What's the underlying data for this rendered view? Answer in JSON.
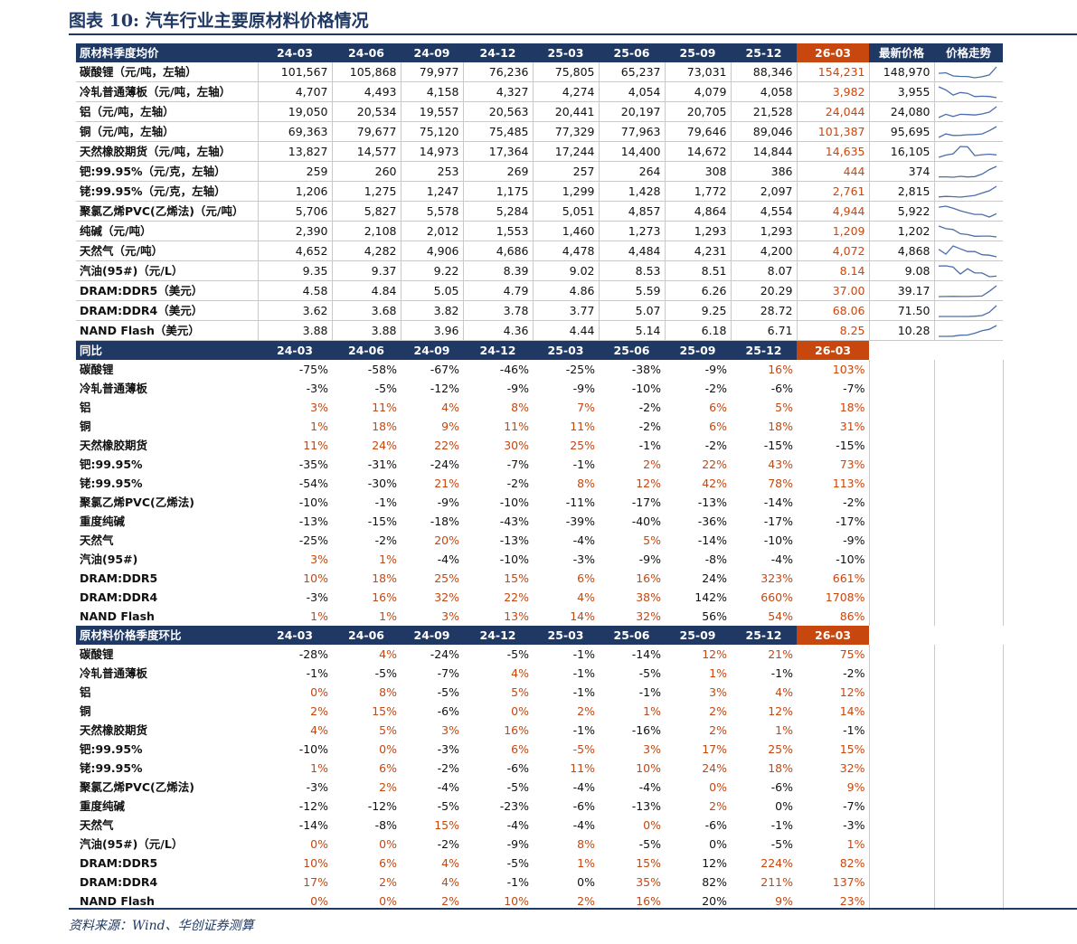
{
  "title": "图表 10:  汽车行业主要原材料价格情况",
  "source": "资料来源：Wind、华创证券测算",
  "colors": {
    "navy": "#1f3864",
    "accent": "#c8470f",
    "sparkline": "#4a6ea9"
  },
  "periods": [
    "24-03",
    "24-06",
    "24-09",
    "24-12",
    "25-03",
    "25-06",
    "25-09",
    "25-12",
    "26-03"
  ],
  "price_section": {
    "header": "原材料季度均价",
    "latest_label": "最新价格",
    "trend_label": "价格走势",
    "rows": [
      {
        "name": "碳酸锂（元/吨，左轴）",
        "values": [
          "101,567",
          "105,868",
          "79,977",
          "76,236",
          "75,805",
          "65,237",
          "73,031",
          "88,346",
          "154,231"
        ],
        "latest": "148,970",
        "spark": [
          101567,
          105868,
          79977,
          76236,
          75805,
          65237,
          73031,
          88346,
          154231
        ]
      },
      {
        "name": "冷轧普通薄板（元/吨，左轴）",
        "values": [
          "4,707",
          "4,493",
          "4,158",
          "4,327",
          "4,274",
          "4,054",
          "4,079",
          "4,058",
          "3,982"
        ],
        "latest": "3,955",
        "spark": [
          4707,
          4493,
          4158,
          4327,
          4274,
          4054,
          4079,
          4058,
          3982
        ]
      },
      {
        "name": "铝（元/吨，左轴）",
        "values": [
          "19,050",
          "20,534",
          "19,557",
          "20,563",
          "20,441",
          "20,197",
          "20,705",
          "21,528",
          "24,044"
        ],
        "latest": "24,080",
        "spark": [
          19050,
          20534,
          19557,
          20563,
          20441,
          20197,
          20705,
          21528,
          24044
        ]
      },
      {
        "name": "铜（元/吨，左轴）",
        "values": [
          "69,363",
          "79,677",
          "75,120",
          "75,485",
          "77,329",
          "77,963",
          "79,646",
          "89,046",
          "101,387"
        ],
        "latest": "95,695",
        "spark": [
          69363,
          79677,
          75120,
          75485,
          77329,
          77963,
          79646,
          89046,
          101387
        ]
      },
      {
        "name": "天然橡胶期货（元/吨，左轴）",
        "values": [
          "13,827",
          "14,577",
          "14,973",
          "17,364",
          "17,244",
          "14,400",
          "14,672",
          "14,844",
          "14,635"
        ],
        "latest": "16,105",
        "spark": [
          13827,
          14577,
          14973,
          17364,
          17244,
          14400,
          14672,
          14844,
          14635
        ]
      },
      {
        "name": "钯:99.95%（元/克，左轴）",
        "values": [
          "259",
          "260",
          "253",
          "269",
          "257",
          "264",
          "308",
          "386",
          "444"
        ],
        "latest": "374",
        "spark": [
          259,
          260,
          253,
          269,
          257,
          264,
          308,
          386,
          444
        ]
      },
      {
        "name": "铑:99.95%（元/克，左轴）",
        "values": [
          "1,206",
          "1,275",
          "1,247",
          "1,175",
          "1,299",
          "1,428",
          "1,772",
          "2,097",
          "2,761"
        ],
        "latest": "2,815",
        "spark": [
          1206,
          1275,
          1247,
          1175,
          1299,
          1428,
          1772,
          2097,
          2761
        ]
      },
      {
        "name": "聚氯乙烯PVC(乙烯法)（元/吨）",
        "values": [
          "5,706",
          "5,827",
          "5,578",
          "5,284",
          "5,051",
          "4,857",
          "4,864",
          "4,554",
          "4,944"
        ],
        "latest": "5,922",
        "spark": [
          5706,
          5827,
          5578,
          5284,
          5051,
          4857,
          4864,
          4554,
          4944
        ]
      },
      {
        "name": "纯碱（元/吨）",
        "values": [
          "2,390",
          "2,108",
          "2,012",
          "1,553",
          "1,460",
          "1,273",
          "1,293",
          "1,293",
          "1,209"
        ],
        "latest": "1,202",
        "spark": [
          2390,
          2108,
          2012,
          1553,
          1460,
          1273,
          1293,
          1293,
          1209
        ]
      },
      {
        "name": "天然气（元/吨）",
        "values": [
          "4,652",
          "4,282",
          "4,906",
          "4,686",
          "4,478",
          "4,484",
          "4,231",
          "4,200",
          "4,072"
        ],
        "latest": "4,868",
        "spark": [
          4652,
          4282,
          4906,
          4686,
          4478,
          4484,
          4231,
          4200,
          4072
        ]
      },
      {
        "name": "汽油(95#)（元/L）",
        "values": [
          "9.35",
          "9.37",
          "9.22",
          "8.39",
          "9.02",
          "8.53",
          "8.51",
          "8.07",
          "8.14"
        ],
        "latest": "9.08",
        "spark": [
          9.35,
          9.37,
          9.22,
          8.39,
          9.02,
          8.53,
          8.51,
          8.07,
          8.14
        ]
      },
      {
        "name": "DRAM:DDR5（美元）",
        "values": [
          "4.58",
          "4.84",
          "5.05",
          "4.79",
          "4.86",
          "5.59",
          "6.26",
          "20.29",
          "37.00"
        ],
        "latest": "39.17",
        "spark": [
          4.58,
          4.84,
          5.05,
          4.79,
          4.86,
          5.59,
          6.26,
          20.29,
          37.0
        ]
      },
      {
        "name": "DRAM:DDR4（美元）",
        "values": [
          "3.62",
          "3.68",
          "3.82",
          "3.78",
          "3.77",
          "5.07",
          "9.25",
          "28.72",
          "68.06"
        ],
        "latest": "71.50",
        "spark": [
          3.62,
          3.68,
          3.82,
          3.78,
          3.77,
          5.07,
          9.25,
          28.72,
          68.06
        ]
      },
      {
        "name": "NAND Flash（美元）",
        "values": [
          "3.88",
          "3.88",
          "3.96",
          "4.36",
          "4.44",
          "5.14",
          "6.18",
          "6.71",
          "8.25"
        ],
        "latest": "10.28",
        "spark": [
          3.88,
          3.88,
          3.96,
          4.36,
          4.44,
          5.14,
          6.18,
          6.71,
          8.25
        ]
      }
    ]
  },
  "yoy_section": {
    "header": "同比",
    "rows": [
      {
        "name": "碳酸锂",
        "values": [
          "-75%",
          "-58%",
          "-67%",
          "-46%",
          "-25%",
          "-38%",
          "-9%",
          "16%",
          "103%"
        ]
      },
      {
        "name": "冷轧普通薄板",
        "values": [
          "-3%",
          "-5%",
          "-12%",
          "-9%",
          "-9%",
          "-10%",
          "-2%",
          "-6%",
          "-7%"
        ]
      },
      {
        "name": "铝",
        "values": [
          "3%",
          "11%",
          "4%",
          "8%",
          "7%",
          "-2%",
          "6%",
          "5%",
          "18%"
        ]
      },
      {
        "name": "铜",
        "values": [
          "1%",
          "18%",
          "9%",
          "11%",
          "11%",
          "-2%",
          "6%",
          "18%",
          "31%"
        ]
      },
      {
        "name": "天然橡胶期货",
        "values": [
          "11%",
          "24%",
          "22%",
          "30%",
          "25%",
          "-1%",
          "-2%",
          "-15%",
          "-15%"
        ]
      },
      {
        "name": "钯:99.95%",
        "values": [
          "-35%",
          "-31%",
          "-24%",
          "-7%",
          "-1%",
          "2%",
          "22%",
          "43%",
          "73%"
        ]
      },
      {
        "name": "铑:99.95%",
        "values": [
          "-54%",
          "-30%",
          "21%",
          "-2%",
          "8%",
          "12%",
          "42%",
          "78%",
          "113%"
        ]
      },
      {
        "name": "聚氯乙烯PVC(乙烯法)",
        "values": [
          "-10%",
          "-1%",
          "-9%",
          "-10%",
          "-11%",
          "-17%",
          "-13%",
          "-14%",
          "-2%"
        ]
      },
      {
        "name": "重度纯碱",
        "values": [
          "-13%",
          "-15%",
          "-18%",
          "-43%",
          "-39%",
          "-40%",
          "-36%",
          "-17%",
          "-17%"
        ]
      },
      {
        "name": "天然气",
        "values": [
          "-25%",
          "-2%",
          "20%",
          "-13%",
          "-4%",
          "5%",
          "-14%",
          "-10%",
          "-9%"
        ]
      },
      {
        "name": "汽油(95#)",
        "values": [
          "3%",
          "1%",
          "-4%",
          "-10%",
          "-3%",
          "-9%",
          "-8%",
          "-4%",
          "-10%"
        ]
      },
      {
        "name": "DRAM:DDR5",
        "values": [
          "10%",
          "18%",
          "25%",
          "15%",
          "6%",
          "16%",
          "24%",
          "323%",
          "661%"
        ]
      },
      {
        "name": "DRAM:DDR4",
        "values": [
          "-3%",
          "16%",
          "32%",
          "22%",
          "4%",
          "38%",
          "142%",
          "660%",
          "1708%"
        ]
      },
      {
        "name": "NAND Flash",
        "values": [
          "1%",
          "1%",
          "3%",
          "13%",
          "14%",
          "32%",
          "56%",
          "54%",
          "86%"
        ]
      }
    ]
  },
  "qoq_section": {
    "header": "原材料价格季度环比",
    "rows": [
      {
        "name": "碳酸锂",
        "values": [
          "-28%",
          "4%",
          "-24%",
          "-5%",
          "-1%",
          "-14%",
          "12%",
          "21%",
          "75%"
        ]
      },
      {
        "name": "冷轧普通薄板",
        "values": [
          "-1%",
          "-5%",
          "-7%",
          "4%",
          "-1%",
          "-5%",
          "1%",
          "-1%",
          "-2%"
        ]
      },
      {
        "name": "铝",
        "values": [
          "0%",
          "8%",
          "-5%",
          "5%",
          "-1%",
          "-1%",
          "3%",
          "4%",
          "12%"
        ]
      },
      {
        "name": "铜",
        "values": [
          "2%",
          "15%",
          "-6%",
          "0%",
          "2%",
          "1%",
          "2%",
          "12%",
          "14%"
        ]
      },
      {
        "name": "天然橡胶期货",
        "values": [
          "4%",
          "5%",
          "3%",
          "16%",
          "-1%",
          "-16%",
          "2%",
          "1%",
          "-1%"
        ]
      },
      {
        "name": "钯:99.95%",
        "values": [
          "-10%",
          "0%",
          "-3%",
          "6%",
          "-5%",
          "3%",
          "17%",
          "25%",
          "15%"
        ]
      },
      {
        "name": "铑:99.95%",
        "values": [
          "1%",
          "6%",
          "-2%",
          "-6%",
          "11%",
          "10%",
          "24%",
          "18%",
          "32%"
        ]
      },
      {
        "name": "聚氯乙烯PVC(乙烯法)",
        "values": [
          "-3%",
          "2%",
          "-4%",
          "-5%",
          "-4%",
          "-4%",
          "0%",
          "-6%",
          "9%"
        ]
      },
      {
        "name": "重度纯碱",
        "values": [
          "-12%",
          "-12%",
          "-5%",
          "-23%",
          "-6%",
          "-13%",
          "2%",
          "0%",
          "-7%"
        ]
      },
      {
        "name": "天然气",
        "values": [
          "-14%",
          "-8%",
          "15%",
          "-4%",
          "-4%",
          "0%",
          "-6%",
          "-1%",
          "-3%"
        ]
      },
      {
        "name": "汽油(95#)（元/L）",
        "values": [
          "0%",
          "0%",
          "-2%",
          "-9%",
          "8%",
          "-5%",
          "0%",
          "-5%",
          "1%"
        ]
      },
      {
        "name": "DRAM:DDR5",
        "values": [
          "10%",
          "6%",
          "4%",
          "-5%",
          "1%",
          "15%",
          "12%",
          "224%",
          "82%"
        ]
      },
      {
        "name": "DRAM:DDR4",
        "values": [
          "17%",
          "2%",
          "4%",
          "-1%",
          "0%",
          "35%",
          "82%",
          "211%",
          "137%"
        ]
      },
      {
        "name": "NAND Flash",
        "values": [
          "0%",
          "0%",
          "2%",
          "10%",
          "2%",
          "16%",
          "20%",
          "9%",
          "23%"
        ]
      }
    ]
  },
  "red_map": {
    "price": [
      [
        8
      ],
      [
        8
      ],
      [
        8
      ],
      [
        8
      ],
      [
        8
      ],
      [
        8
      ],
      [
        8
      ],
      [
        8
      ],
      [
        8
      ],
      [
        8
      ],
      [
        8
      ],
      [
        8
      ],
      [
        8
      ],
      [
        8
      ]
    ],
    "yoy": [
      [
        7,
        8
      ],
      [],
      [
        0,
        1,
        2,
        3,
        4,
        6,
        7,
        8
      ],
      [
        0,
        1,
        2,
        3,
        4,
        6,
        7,
        8
      ],
      [
        0,
        1,
        2,
        3,
        4
      ],
      [
        5,
        6,
        7,
        8
      ],
      [
        2,
        4,
        5,
        6,
        7,
        8
      ],
      [],
      [],
      [
        2,
        5
      ],
      [
        0,
        1
      ],
      [
        0,
        1,
        2,
        3,
        4,
        5,
        7,
        8
      ],
      [
        1,
        2,
        3,
        4,
        5,
        7,
        8
      ],
      [
        0,
        1,
        2,
        3,
        4,
        5,
        7,
        8
      ]
    ],
    "qoq": [
      [
        1,
        6,
        7,
        8
      ],
      [
        3,
        6
      ],
      [
        0,
        1,
        3,
        6,
        7,
        8
      ],
      [
        0,
        1,
        3,
        4,
        5,
        6,
        7,
        8
      ],
      [
        0,
        1,
        2,
        3,
        6,
        7
      ],
      [
        1,
        3,
        4,
        5,
        6,
        7,
        8
      ],
      [
        0,
        1,
        4,
        5,
        6,
        7,
        8
      ],
      [
        1,
        6,
        8
      ],
      [
        6
      ],
      [
        2,
        5
      ],
      [
        0,
        1,
        4,
        8
      ],
      [
        0,
        1,
        2,
        4,
        5,
        7,
        8
      ],
      [
        0,
        1,
        2,
        5,
        7,
        8
      ],
      [
        0,
        1,
        2,
        3,
        4,
        5,
        7,
        8
      ]
    ]
  }
}
